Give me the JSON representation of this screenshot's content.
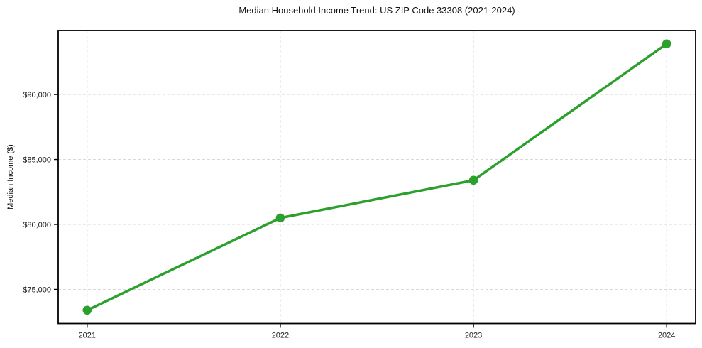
{
  "chart_data": {
    "type": "line",
    "title": "Median Household Income Trend: US ZIP Code 33308 (2021-2024)",
    "ylabel": "Median Income ($)",
    "xlabel": "",
    "x": [
      2021,
      2022,
      2023,
      2024
    ],
    "xtick_labels": [
      "2021",
      "2022",
      "2023",
      "2024"
    ],
    "series": [
      {
        "name": "Median Household Income",
        "values": [
          73400,
          80500,
          83400,
          93900
        ]
      }
    ],
    "yticks": [
      75000,
      80000,
      85000,
      90000
    ],
    "ytick_labels": [
      "$75,000",
      "$80,000",
      "$85,000",
      "$90,000"
    ],
    "xlim": [
      2020.85,
      2024.15
    ],
    "ylim": [
      72375,
      94925
    ],
    "grid": "dashed",
    "legend": false,
    "colors": {
      "line": "#2ca02c",
      "marker": "#2ca02c",
      "grid": "#d9d9d9",
      "axis": "#000000",
      "text": "#1a1a1a",
      "background": "#ffffff"
    }
  }
}
